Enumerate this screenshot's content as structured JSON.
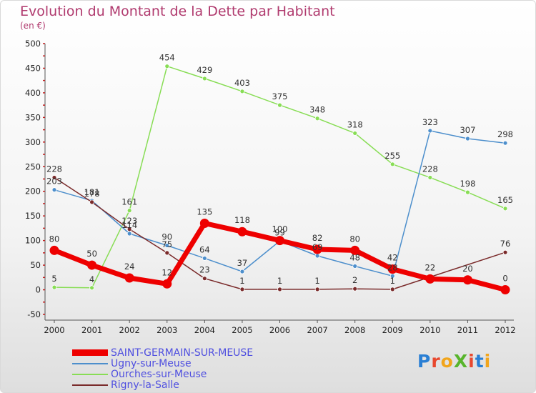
{
  "title": "Evolution du Montant de la Dette par Habitant",
  "subtitle": "(en €)",
  "logo": "ProXiti",
  "chart_data": {
    "type": "line",
    "x": [
      "2000",
      "2001",
      "2002",
      "2003",
      "2004",
      "2005",
      "2006",
      "2007",
      "2008",
      "2009",
      "2010",
      "2011",
      "2012"
    ],
    "ylim": [
      -50,
      500
    ],
    "yticks": [
      -50,
      0,
      50,
      100,
      150,
      200,
      250,
      300,
      350,
      400,
      450,
      500
    ],
    "grid": false,
    "legend_position": "bottom-left",
    "series": [
      {
        "name": "SAINT-GERMAIN-SUR-MEUSE",
        "color": "#ee0000",
        "values": [
          80,
          50,
          24,
          12,
          135,
          118,
          100,
          82,
          80,
          42,
          22,
          20,
          0
        ]
      },
      {
        "name": "Ugny-sur-Meuse",
        "color": "#4d8fcc",
        "values": [
          203,
          181,
          114,
          90,
          64,
          37,
          99,
          69,
          48,
          28,
          323,
          307,
          298
        ]
      },
      {
        "name": "Ourches-sur-Meuse",
        "color": "#88dd55",
        "values": [
          5,
          4,
          161,
          454,
          429,
          403,
          375,
          348,
          318,
          255,
          228,
          198,
          165
        ]
      },
      {
        "name": "Rigny-la-Salle",
        "color": "#7a2a2a",
        "values": [
          228,
          178,
          123,
          75,
          23,
          1,
          1,
          1,
          2,
          1,
          null,
          null,
          76
        ]
      }
    ]
  }
}
